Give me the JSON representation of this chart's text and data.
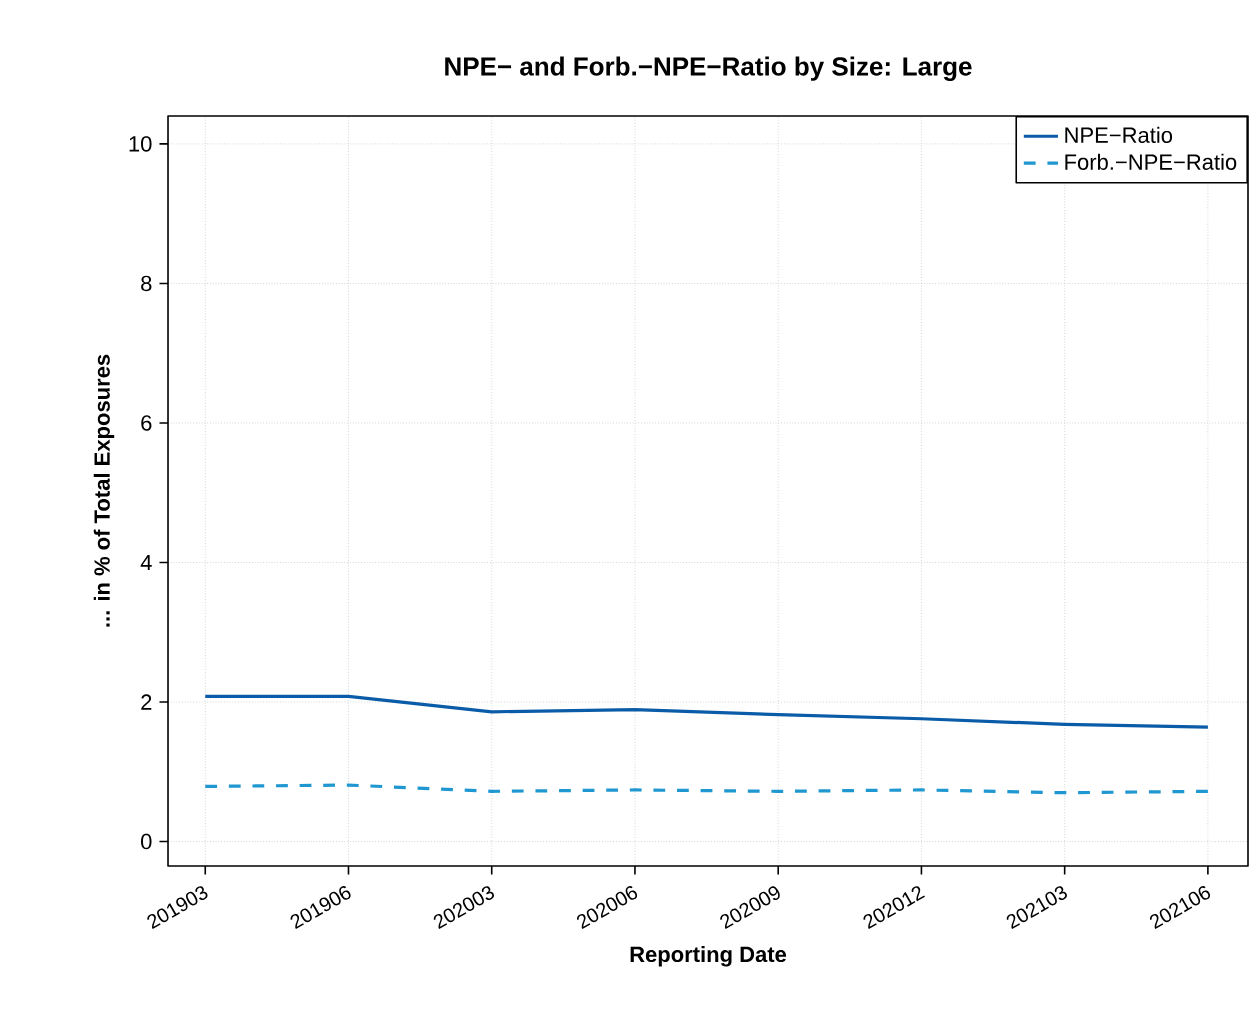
{
  "chart_data": {
    "type": "line",
    "title": "NPE− and Forb.−NPE−Ratio by Size: Large",
    "xlabel": "Reporting Date",
    "ylabel": "... in % of Total Exposures",
    "categories": [
      "201903",
      "201906",
      "202003",
      "202006",
      "202009",
      "202012",
      "202103",
      "202106"
    ],
    "series": [
      {
        "name": "NPE−Ratio",
        "color": "#0b5ca8",
        "line_style": "solid",
        "values": [
          2.08,
          2.08,
          1.86,
          1.89,
          1.82,
          1.76,
          1.68,
          1.64
        ]
      },
      {
        "name": "Forb.−NPE−Ratio",
        "color": "#1f97d0",
        "line_style": "dashed",
        "values": [
          0.79,
          0.81,
          0.72,
          0.74,
          0.72,
          0.74,
          0.7,
          0.72
        ]
      }
    ],
    "ylim": [
      -0.35,
      10.4
    ],
    "yticks": [
      0,
      2,
      4,
      6,
      8,
      10
    ],
    "grid": true,
    "legend": "top right",
    "marker": "none"
  }
}
